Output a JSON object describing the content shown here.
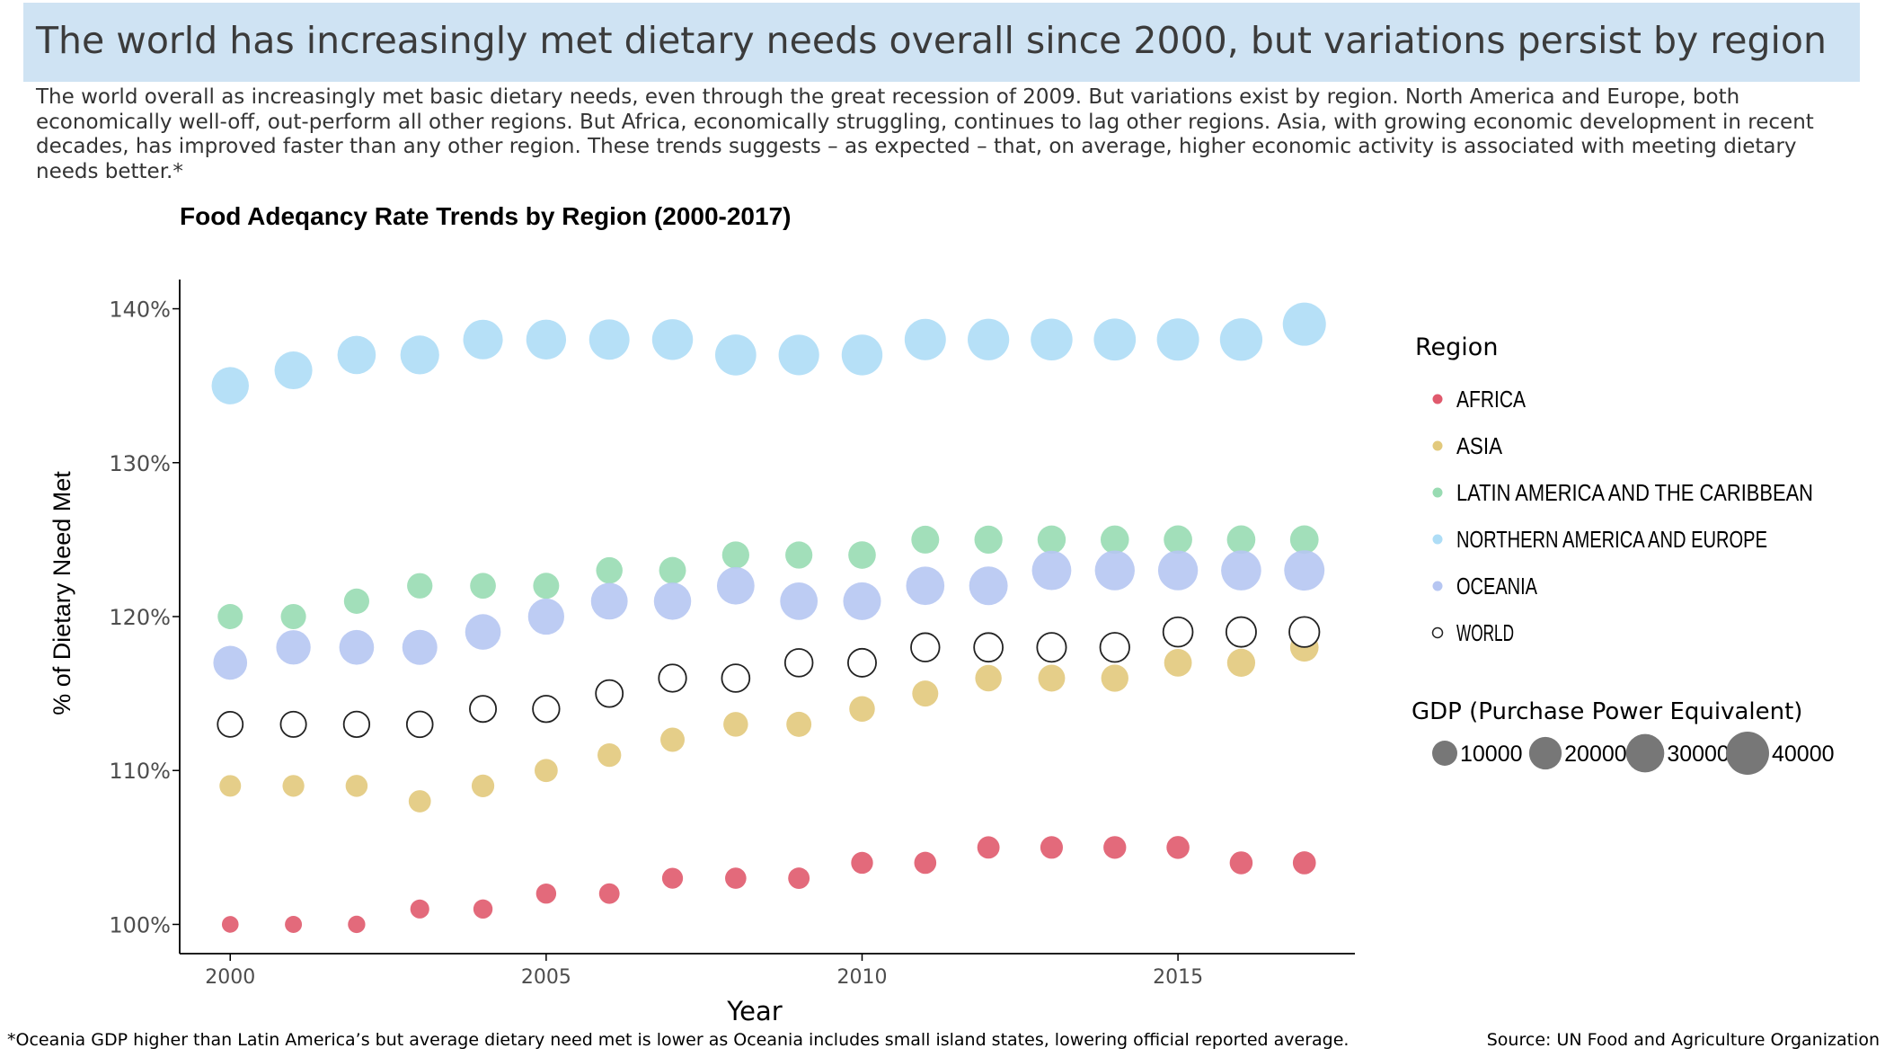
{
  "page": {
    "headline": "The world has increasingly met dietary needs overall since 2000, but variations persist by region",
    "intro": "The world overall as increasingly met basic dietary needs, even through the great recession of 2009. But variations exist by region. North America and Europe, both economically well-off, out-perform all other regions. But Africa, economically struggling, continues to lag other regions. Asia, with growing economic development in recent decades, has improved faster than any other region. These trends suggests – as expected – that, on average, higher economic activity is associated with meeting dietary needs better.*",
    "footnote": "*Oceania GDP higher than Latin America’s but average dietary need met is lower as Oceania includes small island states, lowering official reported average.",
    "source": "Source: UN Food and Agriculture Organization",
    "band_color": "#cfe3f3"
  },
  "chart_data": {
    "type": "scatter",
    "title": "Food Adeqancy Rate Trends by Region (2000-2017)",
    "xlabel": "Year",
    "ylabel": "% of Dietary Need Met",
    "xlim": [
      1999.2,
      2017.8
    ],
    "ylim": [
      98.1,
      141.9
    ],
    "x_ticks": [
      2000,
      2005,
      2010,
      2015
    ],
    "y_ticks": [
      100,
      110,
      120,
      130,
      140
    ],
    "y_tick_labels": [
      "100%",
      "110%",
      "120%",
      "130%",
      "140%"
    ],
    "grid": false,
    "legend_position": "right",
    "x": [
      2000,
      2001,
      2002,
      2003,
      2004,
      2005,
      2006,
      2007,
      2008,
      2009,
      2010,
      2011,
      2012,
      2013,
      2014,
      2015,
      2016,
      2017
    ],
    "legend_title": "Region",
    "size_legend": {
      "title": "GDP (Purchase Power Equivalent)",
      "values": [
        10000,
        20000,
        30000,
        40000
      ],
      "labels": [
        "10000",
        "20000",
        "30000",
        "40000"
      ]
    },
    "series": [
      {
        "name": "AFRICA",
        "color": "#e05a6d",
        "hollow": false,
        "values": [
          100,
          100,
          100,
          101,
          101,
          102,
          102,
          103,
          103,
          103,
          104,
          104,
          105,
          105,
          105,
          105,
          104,
          104
        ],
        "gdp": [
          2800,
          3000,
          3200,
          4300,
          4500,
          5200,
          5500,
          5800,
          6100,
          6300,
          6700,
          6900,
          7100,
          7300,
          7500,
          7700,
          7700,
          7800
        ]
      },
      {
        "name": "ASIA",
        "color": "#e2c97c",
        "hollow": false,
        "values": [
          109,
          109,
          109,
          108,
          109,
          110,
          111,
          112,
          113,
          113,
          114,
          115,
          116,
          116,
          116,
          117,
          117,
          118
        ],
        "gdp": [
          6400,
          6600,
          6800,
          7000,
          7400,
          7900,
          8400,
          9000,
          9500,
          9900,
          10500,
          11000,
          11500,
          12000,
          12500,
          13000,
          13500,
          14000
        ]
      },
      {
        "name": "LATIN AMERICA AND THE CARIBBEAN",
        "color": "#98dbb2",
        "hollow": false,
        "values": [
          120,
          120,
          121,
          122,
          122,
          122,
          123,
          123,
          124,
          124,
          124,
          125,
          125,
          125,
          125,
          125,
          125,
          125
        ],
        "gdp": [
          10000,
          10100,
          10200,
          10300,
          10700,
          11000,
          11500,
          12000,
          12400,
          12300,
          12800,
          13200,
          13500,
          13700,
          13900,
          14000,
          14000,
          14100
        ]
      },
      {
        "name": "NORTHERN AMERICA AND EUROPE",
        "color": "#aeddf6",
        "hollow": false,
        "values": [
          135,
          136,
          137,
          137,
          138,
          138,
          138,
          138,
          137,
          137,
          137,
          138,
          138,
          138,
          138,
          138,
          138,
          139
        ],
        "gdp": [
          28000,
          29000,
          30000,
          31000,
          32500,
          33000,
          34000,
          35000,
          35500,
          34500,
          35000,
          36000,
          36500,
          37000,
          37500,
          38000,
          38500,
          40000
        ]
      },
      {
        "name": "OCEANIA",
        "color": "#b6c6f2",
        "hollow": false,
        "values": [
          117,
          118,
          118,
          118,
          119,
          120,
          121,
          121,
          122,
          121,
          121,
          122,
          122,
          123,
          123,
          123,
          123,
          123
        ],
        "gdp": [
          22000,
          23000,
          23500,
          24000,
          25000,
          26000,
          27000,
          28000,
          28500,
          28500,
          29000,
          30000,
          30500,
          32000,
          33000,
          33000,
          33500,
          34000
        ]
      },
      {
        "name": "WORLD",
        "color": "#222222",
        "hollow": true,
        "values": [
          113,
          113,
          113,
          113,
          114,
          114,
          115,
          116,
          116,
          117,
          117,
          118,
          118,
          118,
          118,
          119,
          119,
          119
        ],
        "gdp": [
          10000,
          10300,
          10500,
          10800,
          11200,
          11600,
          12100,
          12600,
          13000,
          12900,
          13400,
          13900,
          14300,
          14700,
          15000,
          15400,
          15800,
          16200
        ]
      }
    ]
  }
}
